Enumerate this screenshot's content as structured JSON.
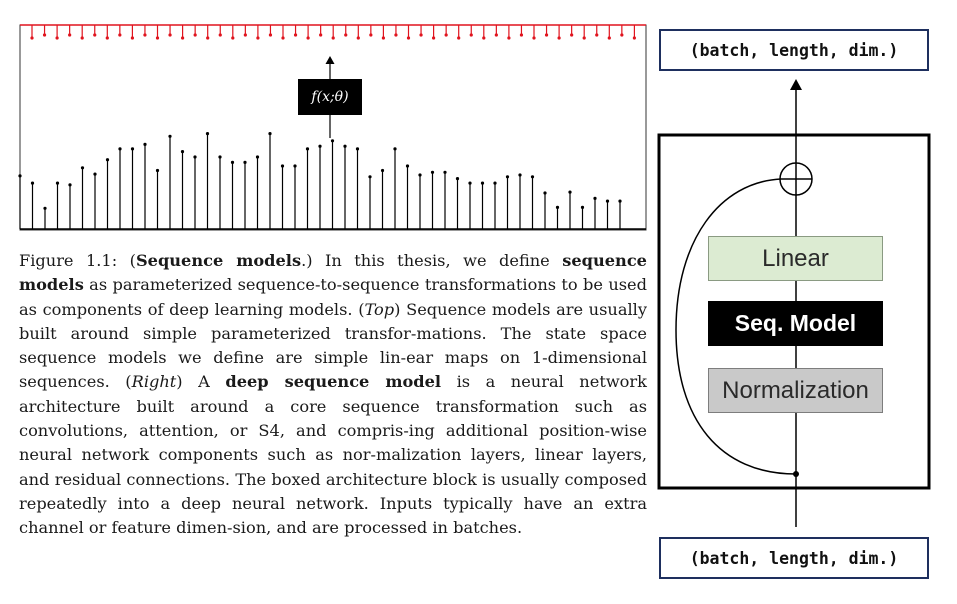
{
  "figure": {
    "function_label": "f(x;θ)",
    "output_shape": "(batch, length, dim.)",
    "input_shape": "(batch, length, dim.)",
    "layers": {
      "linear": "Linear",
      "seq_model": "Seq. Model",
      "normalization": "Normalization"
    },
    "colors": {
      "output_stems": "#e0141e",
      "input_stems": "#000000",
      "linear_fill": "#dcebd2",
      "normalization_fill": "#c9c9c9",
      "seq_model_fill": "#000000",
      "io_box_border": "#1e2f5e"
    },
    "input_sequence_relative_heights": [
      0.59,
      0.51,
      0.23,
      0.51,
      0.49,
      0.68,
      0.61,
      0.77,
      0.89,
      0.89,
      0.94,
      0.65,
      1.03,
      0.86,
      0.8,
      1.06,
      0.8,
      0.74,
      0.74,
      0.8,
      1.06,
      0.7,
      0.7,
      0.89,
      0.92,
      0.98,
      0.92,
      0.89,
      0.58,
      0.65,
      0.89,
      0.7,
      0.6,
      0.63,
      0.63,
      0.56,
      0.51,
      0.51,
      0.51,
      0.58,
      0.6,
      0.58,
      0.4,
      0.24,
      0.41,
      0.24,
      0.34,
      0.31,
      0.31
    ]
  },
  "caption": {
    "label": "Figure 1.1:",
    "title": "Sequence models",
    "t1": "In this thesis, we define",
    "b1": "sequence models",
    "t2": "as parameterized sequence-to-sequence transformations to be used as components of deep learning models.",
    "top": "Top",
    "t3": "Sequence models are usually built around simple parameterized transfor-mations. The state space sequence models we define are simple lin-ear maps on 1-dimensional sequences.",
    "right": "Right",
    "t4": "A",
    "b2": "deep sequence model",
    "t5": "is a neural network architecture built around a core sequence transformation such as convolutions, attention, or S4, and compris-ing additional position-wise neural network components such as nor-malization layers, linear layers, and residual connections. The boxed architecture block is usually composed repeatedly into a deep neural network. Inputs typically have an extra channel or feature dimen-sion, and are processed in batches."
  }
}
